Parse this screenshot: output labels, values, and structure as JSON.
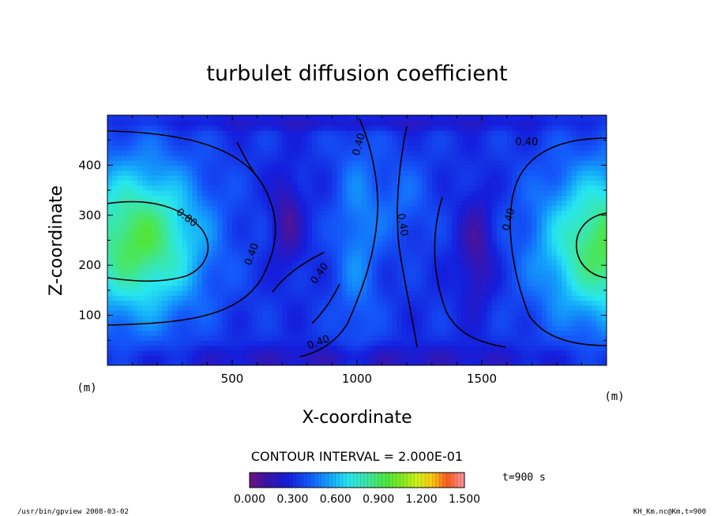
{
  "chart_data": {
    "type": "heatmap",
    "title": "turbulet diffusion coefficient",
    "xlabel": "X-coordinate",
    "ylabel": "Z-coordinate",
    "x_unit": "(m)",
    "y_unit": "(m)",
    "xlim": [
      0,
      2000
    ],
    "ylim": [
      0,
      500
    ],
    "x_ticks": [
      500,
      1000,
      1500
    ],
    "y_ticks": [
      100,
      200,
      300,
      400
    ],
    "contour_interval_text": "CONTOUR INTERVAL = 2.000E-01",
    "contour_levels": [
      0.4,
      0.8
    ],
    "contour_labels": [
      "0.40",
      "0.80"
    ],
    "colorbar": {
      "range": [
        0.0,
        1.5
      ],
      "tick_labels": [
        "0.000",
        "0.300",
        "0.600",
        "0.900",
        "1.200",
        "1.500"
      ]
    },
    "time_label": "t=900 s"
  },
  "footer": {
    "left": "/usr/bin/gpview   2008-03-02",
    "right": "KH_Km.nc@Km,t=900"
  }
}
